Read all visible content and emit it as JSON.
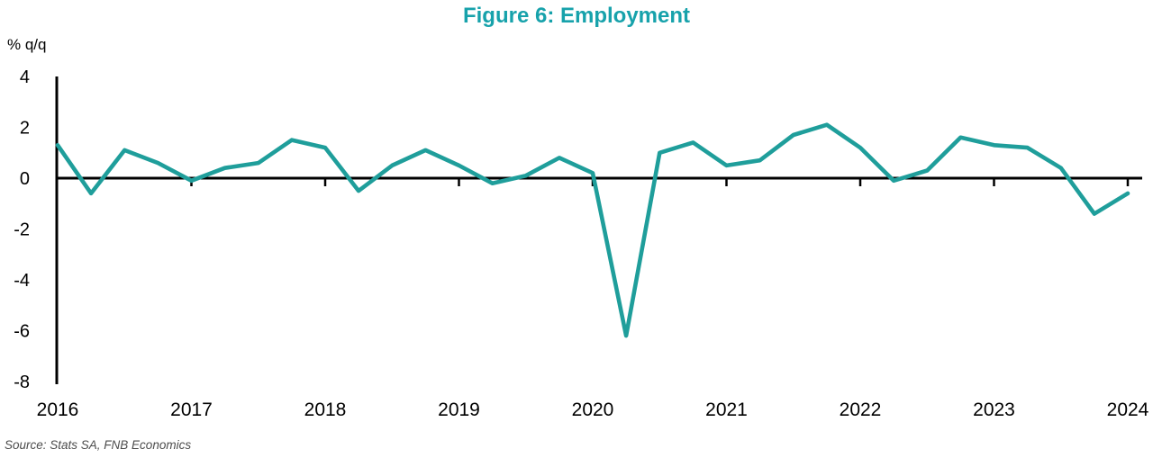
{
  "chart_data": {
    "type": "line",
    "title": "Figure 6: Employment",
    "unit_label": "% q/q",
    "source": "Source: Stats SA, FNB Economics",
    "title_color": "#17a2ab",
    "line_color": "#1f9e9b",
    "axis_color": "#000000",
    "grid": false,
    "legend": "none",
    "ylim": [
      -8,
      4
    ],
    "yticks": [
      4,
      2,
      0,
      -2,
      -4,
      -6,
      -8
    ],
    "x_labels": [
      "2016",
      "2017",
      "2018",
      "2019",
      "2020",
      "2021",
      "2022",
      "2023",
      "2024"
    ],
    "x": [
      "2016Q1",
      "2016Q2",
      "2016Q3",
      "2016Q4",
      "2017Q1",
      "2017Q2",
      "2017Q3",
      "2017Q4",
      "2018Q1",
      "2018Q2",
      "2018Q3",
      "2018Q4",
      "2019Q1",
      "2019Q2",
      "2019Q3",
      "2019Q4",
      "2020Q1",
      "2020Q2",
      "2020Q3",
      "2020Q4",
      "2021Q1",
      "2021Q2",
      "2021Q3",
      "2021Q4",
      "2022Q1",
      "2022Q2",
      "2022Q3",
      "2022Q4",
      "2023Q1",
      "2023Q2",
      "2023Q3",
      "2023Q4",
      "2024Q1"
    ],
    "series": [
      {
        "name": "Employment % q/q",
        "values": [
          1.3,
          -0.6,
          1.1,
          0.6,
          -0.1,
          0.4,
          0.6,
          1.5,
          1.2,
          -0.5,
          0.5,
          1.1,
          0.5,
          -0.2,
          0.1,
          0.8,
          0.2,
          -6.2,
          1.0,
          1.4,
          0.5,
          0.7,
          1.7,
          2.1,
          1.2,
          -0.1,
          0.3,
          1.6,
          1.3,
          1.2,
          0.4,
          -1.4,
          -0.6
        ]
      }
    ]
  }
}
